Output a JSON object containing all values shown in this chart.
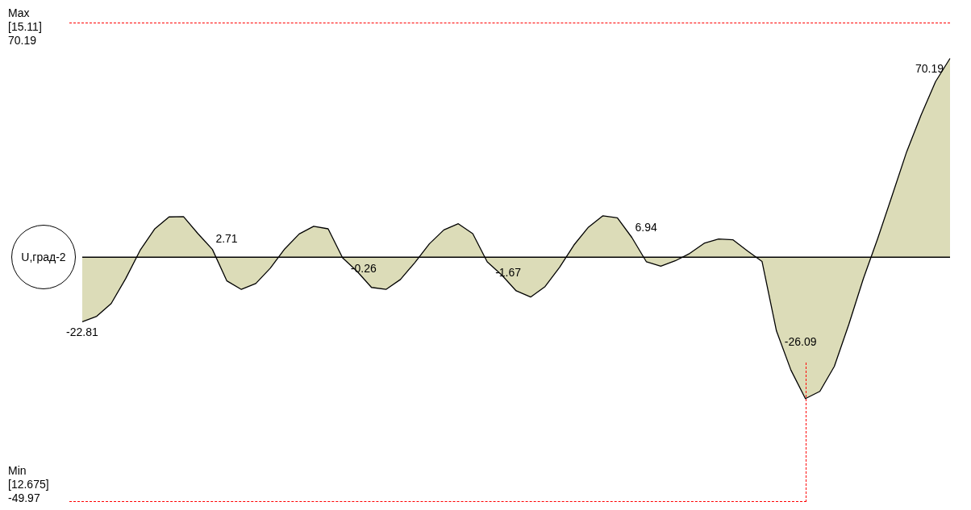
{
  "chart_data": {
    "type": "area",
    "ylabel": "U,град-2",
    "categories": [
      null,
      null,
      null,
      null,
      null,
      null,
      null,
      null,
      null,
      null,
      null,
      null,
      null,
      null,
      null,
      null,
      null,
      null,
      null,
      null,
      null,
      null,
      null,
      null,
      null,
      null,
      null,
      null,
      null,
      null,
      null,
      null,
      null,
      null,
      null,
      null,
      null,
      null,
      null,
      null,
      null,
      null,
      null,
      null,
      null,
      null,
      null,
      null,
      null,
      null,
      null,
      null,
      null,
      null,
      null,
      null,
      null,
      null,
      null,
      null,
      null
    ],
    "series": [
      {
        "color": "#000000",
        "values": [
          -22.81,
          -20.9,
          -16.4,
          -7.6,
          2.4,
          9.9,
          14.2,
          14.3,
          8.3,
          2.71,
          -8.4,
          -11.4,
          -9.3,
          -3.9,
          2.9,
          8.2,
          10.9,
          10.0,
          -0.26,
          -5.0,
          -10.7,
          -11.4,
          -7.9,
          -1.9,
          4.7,
          9.6,
          11.8,
          8.3,
          -1.67,
          -6.3,
          -11.9,
          -14.1,
          -10.4,
          -3.6,
          4.3,
          10.6,
          14.6,
          13.9,
          6.94,
          -1.6,
          -3.2,
          -1.3,
          1.3,
          4.9,
          6.4,
          6.1,
          2.2,
          -1.5,
          -26.09,
          -39.9,
          -49.97,
          -47.4,
          -38.6,
          -23.8,
          -7.7,
          6.6,
          21.8,
          37.2,
          50.2,
          62.0,
          70.19
        ],
        "value_labels": [
          "-22.81",
          null,
          null,
          null,
          null,
          null,
          null,
          null,
          null,
          "2.71",
          null,
          null,
          null,
          null,
          null,
          null,
          null,
          null,
          "-0.26",
          null,
          null,
          null,
          null,
          null,
          null,
          null,
          null,
          null,
          "-1.67",
          null,
          null,
          null,
          null,
          null,
          null,
          null,
          null,
          null,
          "6.94",
          null,
          null,
          null,
          null,
          null,
          null,
          null,
          null,
          null,
          "-26.09",
          null,
          null,
          null,
          null,
          null,
          null,
          null,
          null,
          null,
          null,
          null,
          "70.19"
        ]
      }
    ],
    "annotations": [
      "Max\n[15.11]\n70.19",
      "Min\n[12.675]\n-49.97"
    ]
  }
}
